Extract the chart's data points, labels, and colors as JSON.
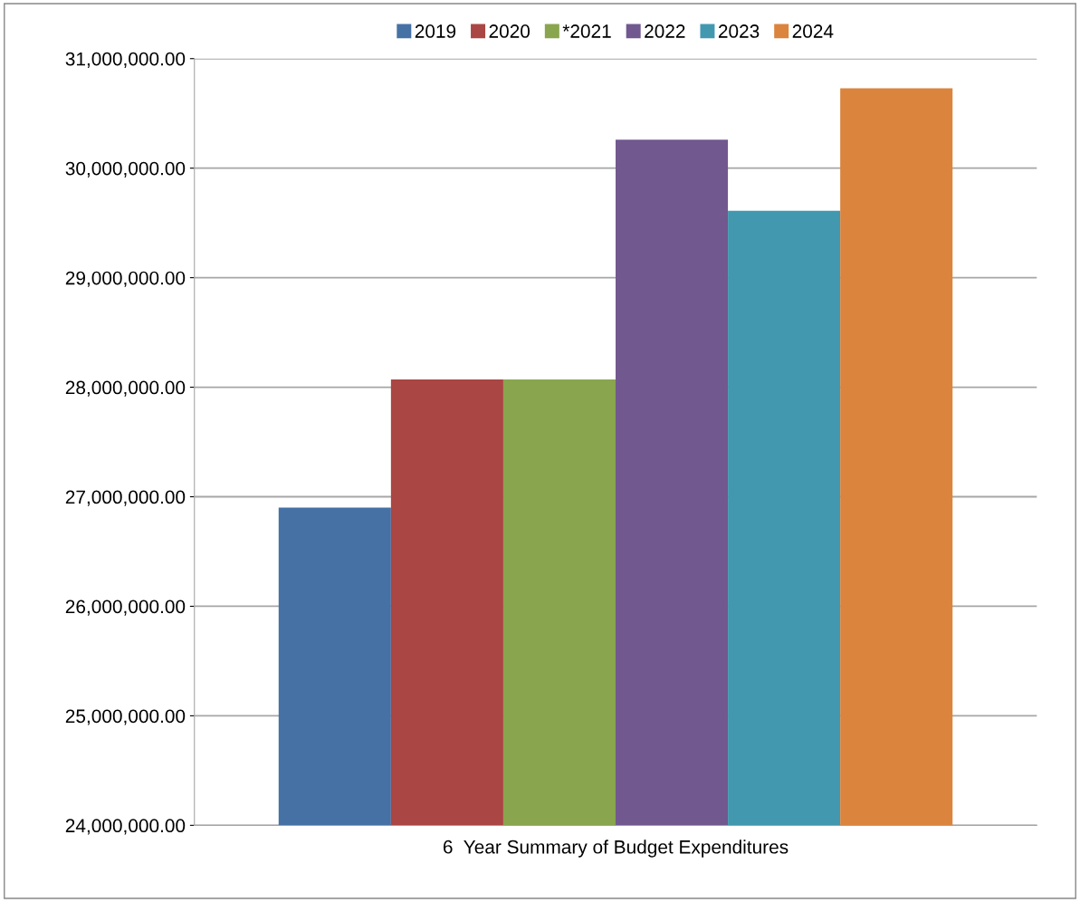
{
  "chart_data": {
    "type": "bar",
    "xlabel": "6  Year Summary of Budget Expenditures",
    "categories": [
      null
    ],
    "series": [
      {
        "name": "2019",
        "color": "#4571a5",
        "values": [
          26900000
        ]
      },
      {
        "name": "2020",
        "color": "#aa4643",
        "values": [
          28070000
        ]
      },
      {
        "name": "*2021",
        "color": "#89a54e",
        "values": [
          28070000
        ]
      },
      {
        "name": "2022",
        "color": "#71588f",
        "values": [
          30260000
        ]
      },
      {
        "name": "2023",
        "color": "#4198af",
        "values": [
          29610000
        ]
      },
      {
        "name": "2024",
        "color": "#db843d",
        "values": [
          30730000
        ]
      }
    ],
    "ylim": [
      24000000,
      31000000
    ],
    "yticks": [
      {
        "value": 24000000,
        "label": "24,000,000.00"
      },
      {
        "value": 25000000,
        "label": "25,000,000.00"
      },
      {
        "value": 26000000,
        "label": "26,000,000.00"
      },
      {
        "value": 27000000,
        "label": "27,000,000.00"
      },
      {
        "value": 28000000,
        "label": "28,000,000.00"
      },
      {
        "value": 29000000,
        "label": "29,000,000.00"
      },
      {
        "value": 30000000,
        "label": "30,000,000.00"
      },
      {
        "value": 31000000,
        "label": "31,000,000.00"
      }
    ],
    "grid": "y",
    "legend": "top"
  }
}
